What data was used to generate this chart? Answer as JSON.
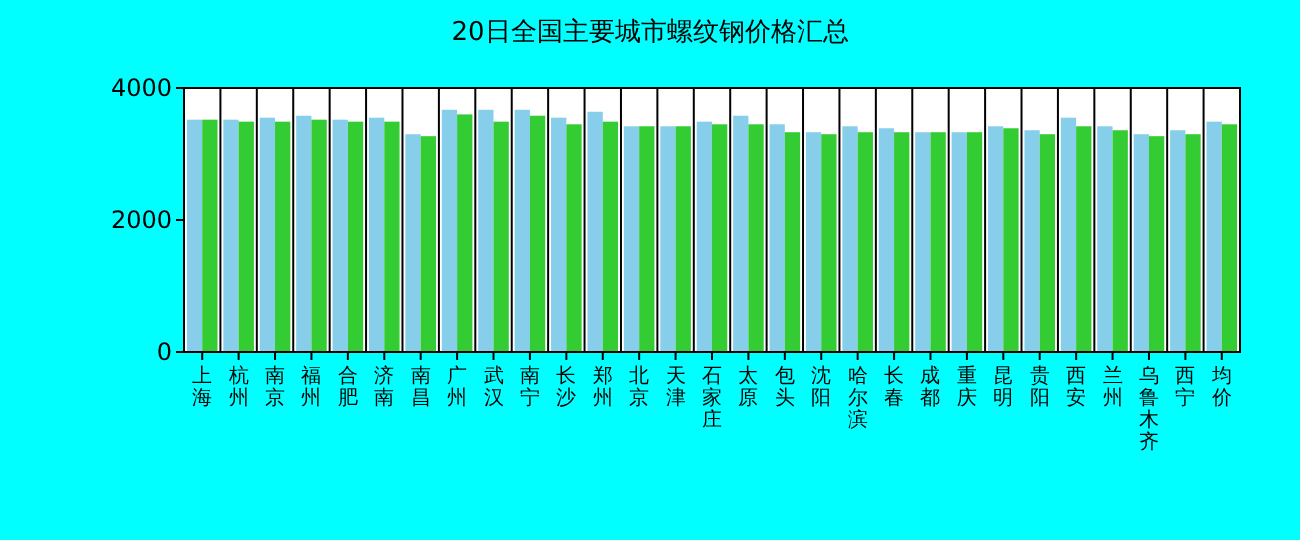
{
  "chart_data": {
    "type": "bar",
    "title": "20日全国主要城市螺纹钢价格汇总",
    "categories": [
      "上海",
      "杭州",
      "南京",
      "福州",
      "合肥",
      "济南",
      "南昌",
      "广州",
      "武汉",
      "南宁",
      "长沙",
      "郑州",
      "北京",
      "天津",
      "石家庄",
      "太原",
      "包头",
      "沈阳",
      "哈尔滨",
      "长春",
      "成都",
      "重庆",
      "昆明",
      "贵阳",
      "西安",
      "兰州",
      "乌鲁木齐",
      "西宁",
      "均价"
    ],
    "series": [
      {
        "color": "#87ceeb",
        "values": [
          3520,
          3520,
          3550,
          3580,
          3520,
          3550,
          3300,
          3670,
          3670,
          3670,
          3550,
          3640,
          3420,
          3420,
          3490,
          3580,
          3450,
          3330,
          3420,
          3390,
          3330,
          3330,
          3420,
          3360,
          3550,
          3420,
          3300,
          3360,
          3490
        ]
      },
      {
        "color": "#33cc33",
        "values": [
          3520,
          3490,
          3490,
          3520,
          3490,
          3490,
          3270,
          3600,
          3490,
          3580,
          3450,
          3490,
          3420,
          3420,
          3450,
          3450,
          3330,
          3300,
          3330,
          3330,
          3330,
          3330,
          3390,
          3300,
          3420,
          3360,
          3270,
          3300,
          3450
        ]
      }
    ],
    "ylim": [
      0,
      4000
    ],
    "yticks": [
      0,
      2000,
      4000
    ],
    "grid": "x"
  }
}
